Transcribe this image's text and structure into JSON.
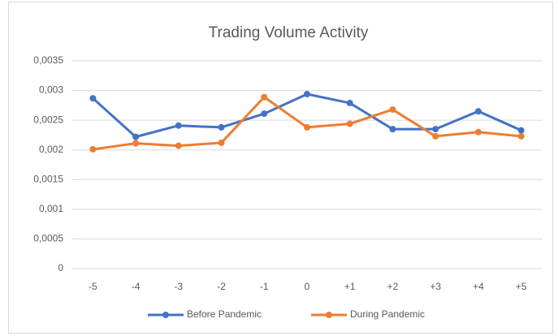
{
  "chart_data": {
    "type": "line",
    "title": "Trading Volume Activity",
    "categories": [
      "-5",
      "-4",
      "-3",
      "-2",
      "-1",
      "0",
      "+1",
      "+2",
      "+3",
      "+4",
      "+5"
    ],
    "series": [
      {
        "name": "Before Pandemic",
        "color": "#4472c4",
        "values": [
          0.00287,
          0.00222,
          0.00241,
          0.00238,
          0.00261,
          0.00294,
          0.00279,
          0.00235,
          0.00235,
          0.00265,
          0.00233
        ]
      },
      {
        "name": "During Pandemic",
        "color": "#ed7d31",
        "values": [
          0.00201,
          0.00211,
          0.00207,
          0.00212,
          0.00289,
          0.00238,
          0.00244,
          0.00268,
          0.00223,
          0.0023,
          0.00223
        ]
      }
    ],
    "ylim": [
      0,
      0.0035
    ],
    "yticks": [
      0,
      {
        "value": 0.0005,
        "label": "0,0005"
      },
      {
        "value": 0.001,
        "label": "0,001"
      },
      {
        "value": 0.0015,
        "label": "0,0015"
      },
      {
        "value": 0.002,
        "label": "0,002"
      },
      {
        "value": 0.0025,
        "label": "0,0025"
      },
      {
        "value": 0.003,
        "label": "0,003"
      },
      {
        "value": 0.0035,
        "label": "0,0035"
      }
    ],
    "grid": true,
    "legend": "bottom"
  }
}
